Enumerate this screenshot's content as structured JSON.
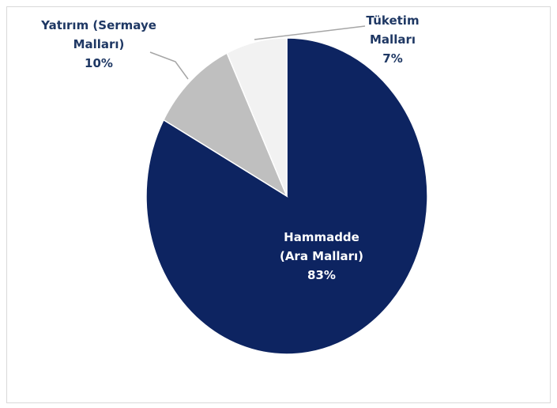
{
  "chart_data": {
    "type": "pie",
    "categories": [
      "Hammadde (Ara Malları)",
      "Yatırım (Sermaye Malları)",
      "Tüketim Malları"
    ],
    "values": [
      83,
      10,
      7
    ],
    "value_labels": [
      "83%",
      "10%",
      "7%"
    ],
    "colors": [
      "#0d2461",
      "#bfbfbf",
      "#f2f2f2"
    ]
  }
}
